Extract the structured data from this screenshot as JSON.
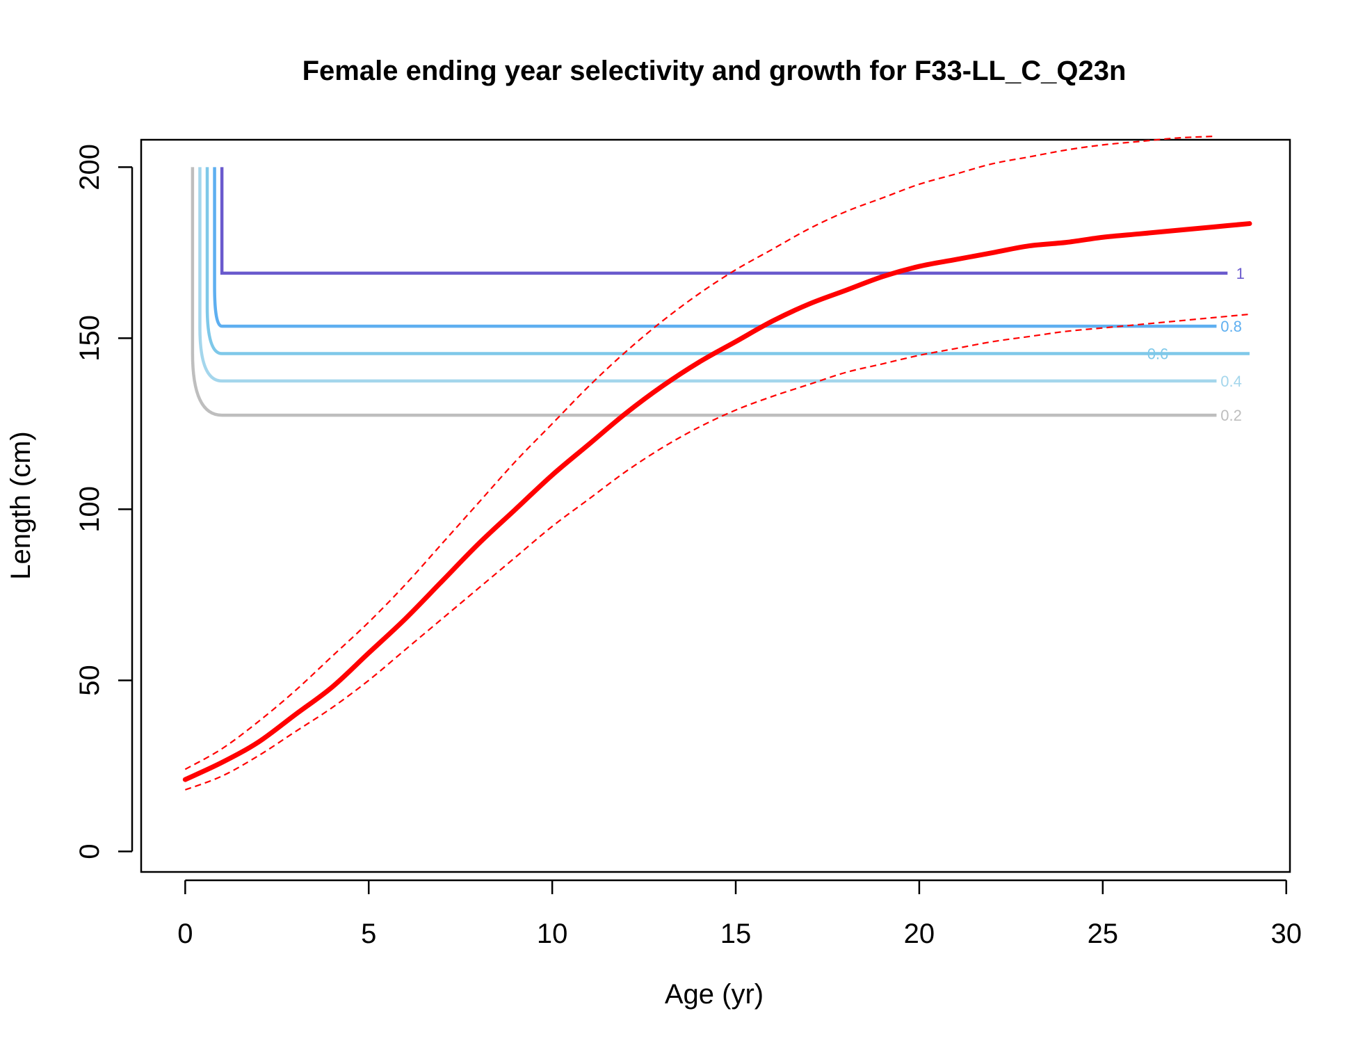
{
  "chart_data": {
    "type": "line",
    "title": "Female ending year selectivity and growth for F33-LL_C_Q23n",
    "xlabel": "Age (yr)",
    "ylabel": "Length (cm)",
    "xlim": [
      -1.2,
      30.1
    ],
    "ylim": [
      -6,
      208
    ],
    "x_ticks": [
      0,
      5,
      10,
      15,
      20,
      25,
      30
    ],
    "y_ticks": [
      0,
      50,
      100,
      150,
      200
    ],
    "grid": false,
    "legend": "none",
    "growth": {
      "mean": {
        "color": "#ff0000",
        "x": [
          0,
          1,
          2,
          3,
          4,
          5,
          6,
          7,
          8,
          9,
          10,
          11,
          12,
          13,
          14,
          15,
          16,
          17,
          18,
          19,
          20,
          21,
          22,
          23,
          24,
          25,
          26,
          27,
          28,
          29
        ],
        "y": [
          21,
          26,
          32,
          40,
          48,
          58,
          68,
          79,
          90,
          100,
          110,
          119,
          128,
          136,
          143,
          149,
          155,
          160,
          164,
          168,
          171,
          173,
          175,
          177,
          178,
          179.5,
          180.5,
          181.5,
          182.5,
          183.5
        ]
      },
      "upper": {
        "color": "#ff0000",
        "x": [
          0,
          1,
          2,
          3,
          4,
          5,
          6,
          7,
          8,
          9,
          10,
          11,
          12,
          13,
          14,
          15,
          16,
          17,
          18,
          19,
          20,
          21,
          22,
          23,
          24,
          25,
          26,
          27,
          28
        ],
        "y": [
          24,
          30,
          38,
          47,
          57,
          67,
          78,
          90,
          102,
          114,
          125,
          136,
          146,
          155,
          163,
          170,
          176,
          182,
          187,
          191,
          195,
          198,
          201,
          203,
          205,
          206.5,
          207.5,
          208.5,
          209
        ]
      },
      "lower": {
        "color": "#ff0000",
        "x": [
          0,
          1,
          2,
          3,
          4,
          5,
          6,
          7,
          8,
          9,
          10,
          11,
          12,
          13,
          14,
          15,
          16,
          17,
          18,
          19,
          20,
          21,
          22,
          23,
          24,
          25,
          26,
          27,
          28,
          29
        ],
        "y": [
          18,
          22,
          28,
          35,
          42,
          50,
          59,
          68,
          77,
          86,
          95,
          103,
          111,
          118,
          124,
          129,
          133,
          136.5,
          140,
          142.5,
          145,
          147,
          149,
          150.5,
          152,
          153,
          154,
          155,
          156,
          157
        ]
      }
    },
    "selectivity_contours": [
      {
        "level": "0.2",
        "color": "#bebebe",
        "x_bottom": 0.2,
        "y": 127.5,
        "x_end": 28.1,
        "label_x": 28.5
      },
      {
        "level": "0.4",
        "color": "#a4d6ec",
        "x_bottom": 0.4,
        "y": 137.5,
        "x_end": 28.1,
        "label_x": 28.5
      },
      {
        "level": "0.6",
        "color": "#7ec8e9",
        "x_bottom": 0.6,
        "y": 145.5,
        "x_end": 29.0,
        "label_x": 26.5
      },
      {
        "level": "0.8",
        "color": "#5eaff0",
        "x_bottom": 0.8,
        "y": 153.5,
        "x_end": 28.1,
        "label_x": 28.5
      },
      {
        "level": "1",
        "color": "#6a5acd",
        "x_bottom": 1.0,
        "y": 169,
        "x_end": 28.4,
        "label_x": 28.75
      }
    ],
    "contour_top_y": 200
  }
}
